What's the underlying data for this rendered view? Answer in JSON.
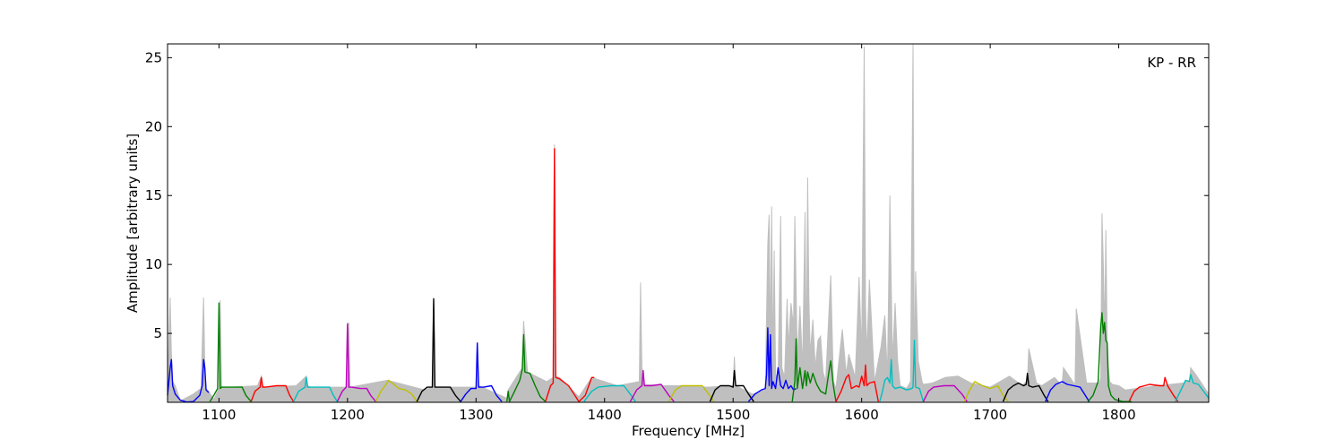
{
  "chart_data": {
    "type": "line",
    "annotation": "KP - RR",
    "xlabel": "Frequency [MHz]",
    "ylabel": "Amplitude [arbitrary units]",
    "xlim": [
      1060,
      1870
    ],
    "ylim": [
      0,
      26
    ],
    "x_ticks": [
      1100,
      1200,
      1300,
      1400,
      1500,
      1600,
      1700,
      1800
    ],
    "y_ticks": [
      5,
      10,
      15,
      20,
      25
    ],
    "grid": false,
    "legend": "none",
    "background_series": {
      "color": "#bfbfbf",
      "x": [
        1060,
        1062,
        1063,
        1064,
        1066,
        1070,
        1080,
        1086,
        1088,
        1089,
        1090,
        1092,
        1096,
        1100,
        1101,
        1102,
        1110,
        1130,
        1133,
        1134,
        1136,
        1160,
        1168,
        1169,
        1171,
        1200,
        1201,
        1202,
        1231,
        1260,
        1266,
        1267,
        1268,
        1272,
        1300,
        1301,
        1302,
        1324,
        1325,
        1336,
        1337,
        1340,
        1355,
        1360,
        1361,
        1362,
        1365,
        1380,
        1390,
        1410,
        1427,
        1428,
        1429,
        1431,
        1445,
        1460,
        1480,
        1500,
        1501,
        1502,
        1515,
        1525,
        1527,
        1528,
        1529,
        1530,
        1531,
        1532,
        1533,
        1535,
        1537,
        1538,
        1540,
        1542,
        1543,
        1545,
        1547,
        1548,
        1550,
        1552,
        1554,
        1556,
        1557,
        1558,
        1559,
        1560,
        1562,
        1564,
        1566,
        1568,
        1570,
        1572,
        1574,
        1576,
        1578,
        1580,
        1585,
        1588,
        1590,
        1595,
        1598,
        1600,
        1602,
        1603,
        1604,
        1606,
        1610,
        1615,
        1618,
        1620,
        1622,
        1623,
        1624,
        1626,
        1628,
        1630,
        1635,
        1638,
        1640,
        1641,
        1642,
        1644,
        1646,
        1647,
        1648,
        1655,
        1665,
        1675,
        1685,
        1700,
        1715,
        1725,
        1728,
        1729,
        1730,
        1736,
        1740,
        1750,
        1755,
        1756,
        1757,
        1765,
        1766,
        1767,
        1775,
        1785,
        1786,
        1787,
        1788,
        1789,
        1790,
        1791,
        1792,
        1793,
        1795,
        1800,
        1805,
        1830,
        1850,
        1855,
        1856,
        1860,
        1870
      ],
      "y": [
        0.9,
        7.6,
        3.5,
        1.5,
        1.2,
        0.1,
        0.6,
        1.0,
        7.6,
        2.5,
        1.0,
        0.8,
        0.2,
        1.0,
        7.4,
        1.1,
        1.1,
        1.2,
        1.9,
        1.2,
        1.1,
        1.2,
        1.9,
        1.2,
        1.1,
        1.1,
        5.8,
        1.1,
        1.6,
        0.9,
        1.1,
        7.6,
        1.1,
        1.1,
        1.1,
        4.3,
        1.2,
        0.3,
        0.9,
        2.5,
        5.9,
        2.2,
        1.5,
        1.8,
        18.7,
        1.9,
        1.8,
        0.4,
        1.8,
        1.2,
        1.5,
        8.7,
        2.5,
        1.3,
        1.2,
        1.2,
        1.1,
        1.2,
        3.3,
        1.2,
        0.6,
        0.9,
        11.5,
        13.6,
        4.0,
        14.2,
        3.0,
        11.0,
        2.0,
        1.7,
        13.5,
        2.5,
        1.8,
        7.5,
        4.0,
        7.2,
        5.5,
        13.5,
        3.0,
        7.0,
        2.5,
        13.8,
        3.0,
        16.3,
        7.5,
        3.5,
        6.0,
        2.5,
        4.5,
        4.8,
        2.2,
        1.5,
        5.5,
        9.2,
        1.5,
        1.0,
        5.3,
        2.0,
        3.5,
        1.8,
        9.1,
        3.5,
        25.8,
        7.0,
        3.5,
        8.9,
        1.5,
        4.0,
        6.3,
        1.8,
        15.0,
        8.4,
        3.0,
        7.2,
        3.0,
        1.2,
        1.0,
        1.5,
        26.0,
        1.5,
        9.5,
        3.0,
        2.0,
        1.5,
        1.3,
        1.4,
        1.8,
        1.9,
        1.4,
        1.1,
        1.9,
        1.2,
        1.5,
        1.5,
        3.9,
        1.4,
        1.2,
        1.8,
        1.3,
        1.4,
        2.5,
        1.4,
        1.2,
        6.8,
        1.4,
        1.4,
        1.8,
        13.7,
        10.0,
        5.0,
        12.5,
        4.5,
        2.5,
        1.5,
        1.3,
        1.2,
        0.9,
        1.2,
        1.4,
        1.6,
        2.5,
        2.0,
        0.6
      ]
    },
    "series": [
      {
        "color": "#0000ff",
        "x": [
          1060,
          1062,
          1063,
          1064,
          1066,
          1070,
          1075,
          1080,
          1085,
          1087,
          1088,
          1089,
          1090,
          1092
        ],
        "y": [
          0.5,
          2.5,
          3.1,
          1.2,
          0.6,
          0.15,
          0.02,
          0.05,
          0.5,
          1.2,
          3.1,
          2.5,
          0.9,
          0.7
        ]
      },
      {
        "color": "#008000",
        "x": [
          1093,
          1096,
          1099,
          1100,
          1101,
          1102,
          1105,
          1112,
          1118,
          1121,
          1125
        ],
        "y": [
          0.05,
          0.5,
          1.0,
          7.2,
          1.0,
          1.1,
          1.1,
          1.1,
          1.1,
          0.5,
          0.05
        ]
      },
      {
        "color": "#ff0000",
        "x": [
          1125,
          1128,
          1132,
          1133,
          1134,
          1136,
          1145,
          1152,
          1155,
          1158
        ],
        "y": [
          0.05,
          0.8,
          1.1,
          1.8,
          1.1,
          1.1,
          1.2,
          1.2,
          0.5,
          0.05
        ]
      },
      {
        "color": "#00bfbf",
        "x": [
          1158,
          1162,
          1167,
          1168,
          1169,
          1172,
          1180,
          1186,
          1189,
          1192
        ],
        "y": [
          0.05,
          0.8,
          1.1,
          1.8,
          1.1,
          1.1,
          1.1,
          1.1,
          0.5,
          0.05
        ]
      },
      {
        "color": "#bf00bf",
        "x": [
          1192,
          1196,
          1199,
          1200,
          1201,
          1203,
          1210,
          1215,
          1218,
          1222
        ],
        "y": [
          0.05,
          0.8,
          1.1,
          5.7,
          1.1,
          1.1,
          1.0,
          1.0,
          0.5,
          0.05
        ]
      },
      {
        "color": "#bfbf00",
        "x": [
          1222,
          1226,
          1230,
          1232,
          1236,
          1240,
          1245,
          1250,
          1254
        ],
        "y": [
          0.05,
          0.8,
          1.3,
          1.6,
          1.3,
          1.0,
          0.9,
          0.6,
          0.05
        ]
      },
      {
        "color": "#000000",
        "x": [
          1254,
          1258,
          1262,
          1266,
          1267,
          1268,
          1272,
          1280,
          1284,
          1288
        ],
        "y": [
          0.05,
          0.8,
          1.1,
          1.1,
          7.5,
          1.1,
          1.1,
          1.1,
          0.5,
          0.05
        ]
      },
      {
        "color": "#0000ff",
        "x": [
          1288,
          1292,
          1296,
          1300,
          1301,
          1302,
          1306,
          1312,
          1316,
          1320
        ],
        "y": [
          0.05,
          0.6,
          1.0,
          1.0,
          4.3,
          1.1,
          1.1,
          1.2,
          0.5,
          0.05
        ]
      },
      {
        "color": "#008000",
        "x": [
          1324,
          1325,
          1326,
          1330,
          1334,
          1336,
          1337,
          1338,
          1342,
          1346,
          1350,
          1354
        ],
        "y": [
          0.05,
          0.8,
          0.05,
          0.8,
          1.6,
          2.4,
          4.9,
          2.2,
          2.1,
          1.2,
          0.4,
          0.05
        ]
      },
      {
        "color": "#ff0000",
        "x": [
          1354,
          1358,
          1360,
          1361,
          1362,
          1365,
          1372,
          1380,
          1385,
          1390,
          1392
        ],
        "y": [
          0.05,
          1.2,
          1.4,
          18.4,
          1.8,
          1.7,
          1.2,
          0.05,
          0.5,
          1.8,
          1.8
        ]
      },
      {
        "color": "#00bfbf",
        "x": [
          1384,
          1390,
          1395,
          1405,
          1415,
          1420,
          1424
        ],
        "y": [
          0.05,
          0.8,
          1.1,
          1.2,
          1.2,
          0.6,
          0.05
        ]
      },
      {
        "color": "#bf00bf",
        "x": [
          1420,
          1425,
          1429,
          1430,
          1431,
          1436,
          1444,
          1450,
          1454
        ],
        "y": [
          0.05,
          0.9,
          1.2,
          2.3,
          1.2,
          1.2,
          1.3,
          0.5,
          0.05
        ]
      },
      {
        "color": "#bfbf00",
        "x": [
          1450,
          1455,
          1460,
          1468,
          1476,
          1481,
          1485
        ],
        "y": [
          0.05,
          0.9,
          1.2,
          1.2,
          1.2,
          0.6,
          0.05
        ]
      },
      {
        "color": "#000000",
        "x": [
          1482,
          1486,
          1490,
          1497,
          1500,
          1501,
          1502,
          1508,
          1512,
          1516
        ],
        "y": [
          0.05,
          0.9,
          1.2,
          1.2,
          1.1,
          2.3,
          1.2,
          1.2,
          0.6,
          0.05
        ]
      },
      {
        "color": "#0000ff",
        "x": [
          1512,
          1517,
          1522,
          1525,
          1526,
          1527,
          1528,
          1529,
          1530,
          1531,
          1533,
          1535,
          1537,
          1539,
          1541,
          1543,
          1545,
          1547,
          1549
        ],
        "y": [
          0.05,
          0.6,
          0.9,
          1.0,
          2.0,
          5.4,
          1.2,
          4.9,
          1.0,
          1.5,
          1.0,
          2.5,
          1.2,
          1.0,
          1.6,
          1.0,
          1.2,
          0.9,
          1.0
        ]
      },
      {
        "color": "#008000",
        "x": [
          1546,
          1548,
          1549,
          1550,
          1552,
          1554,
          1556,
          1557,
          1558,
          1560,
          1562,
          1565,
          1568,
          1572,
          1575,
          1576,
          1578,
          1580
        ],
        "y": [
          0.05,
          1.5,
          4.6,
          1.0,
          2.5,
          1.0,
          2.3,
          1.2,
          2.2,
          1.4,
          2.1,
          1.3,
          0.8,
          0.6,
          2.5,
          3.0,
          1.2,
          0.05
        ]
      },
      {
        "color": "#ff0000",
        "x": [
          1580,
          1584,
          1588,
          1590,
          1592,
          1596,
          1598,
          1600,
          1602,
          1603,
          1604,
          1606,
          1610,
          1613
        ],
        "y": [
          0.05,
          0.8,
          1.8,
          2.0,
          1.0,
          1.2,
          1.1,
          1.9,
          1.2,
          2.7,
          1.2,
          1.4,
          1.5,
          0.05
        ]
      },
      {
        "color": "#00bfbf",
        "x": [
          1614,
          1616,
          1618,
          1620,
          1622,
          1623,
          1624,
          1626,
          1630,
          1635,
          1639,
          1640,
          1641,
          1642,
          1645,
          1648
        ],
        "y": [
          0.05,
          0.7,
          1.6,
          1.8,
          1.4,
          3.1,
          1.2,
          1.0,
          1.1,
          0.9,
          1.0,
          1.1,
          4.5,
          1.1,
          1.0,
          0.05
        ]
      },
      {
        "color": "#bf00bf",
        "x": [
          1648,
          1652,
          1656,
          1664,
          1672,
          1678,
          1682
        ],
        "y": [
          0.05,
          0.8,
          1.1,
          1.2,
          1.2,
          0.6,
          0.05
        ]
      },
      {
        "color": "#bfbf00",
        "x": [
          1680,
          1684,
          1688,
          1694,
          1700,
          1706,
          1710,
          1714
        ],
        "y": [
          0.05,
          0.9,
          1.5,
          1.2,
          1.0,
          1.2,
          0.5,
          0.05
        ]
      },
      {
        "color": "#000000",
        "x": [
          1710,
          1714,
          1718,
          1722,
          1726,
          1728,
          1729,
          1730,
          1733,
          1738,
          1742,
          1745
        ],
        "y": [
          0.05,
          0.9,
          1.2,
          1.4,
          1.2,
          1.3,
          2.1,
          1.2,
          1.1,
          1.2,
          0.5,
          0.05
        ]
      },
      {
        "color": "#0000ff",
        "x": [
          1743,
          1747,
          1751,
          1756,
          1760,
          1765,
          1770,
          1774,
          1777
        ],
        "y": [
          0.05,
          0.9,
          1.3,
          1.5,
          1.3,
          1.2,
          1.1,
          0.5,
          0.05
        ]
      },
      {
        "color": "#008000",
        "x": [
          1776,
          1780,
          1784,
          1786,
          1787,
          1788,
          1789,
          1790,
          1791,
          1792,
          1794,
          1797,
          1803,
          1810
        ],
        "y": [
          0.05,
          0.5,
          1.5,
          5.5,
          6.5,
          5.0,
          5.8,
          4.5,
          4.3,
          1.2,
          0.5,
          0.2,
          0.05,
          0.05
        ]
      },
      {
        "color": "#ff0000",
        "x": [
          1808,
          1812,
          1816,
          1824,
          1832,
          1835,
          1836,
          1838,
          1842,
          1846
        ],
        "y": [
          0.05,
          0.8,
          1.1,
          1.3,
          1.2,
          1.2,
          1.8,
          1.2,
          0.6,
          0.05
        ]
      },
      {
        "color": "#00bfbf",
        "x": [
          1844,
          1848,
          1852,
          1855,
          1856,
          1858,
          1862,
          1866,
          1870
        ],
        "y": [
          0.05,
          0.8,
          1.6,
          1.5,
          2.0,
          1.4,
          1.3,
          0.8,
          0.3
        ]
      }
    ]
  }
}
